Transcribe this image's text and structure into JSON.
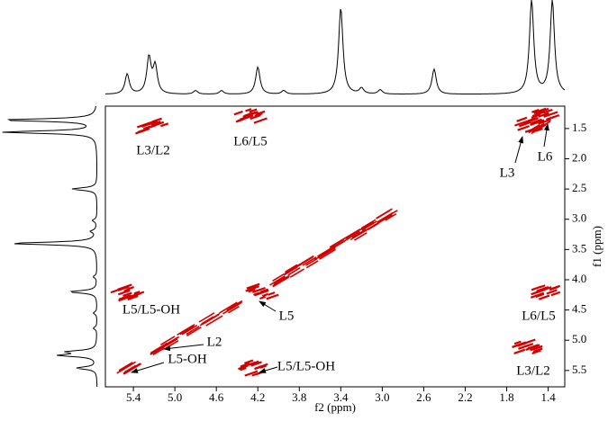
{
  "chart_data": {
    "type": "contour",
    "xlabel": "f2 (ppm)",
    "ylabel": "f1 (ppm)",
    "xlim": [
      5.67,
      1.24
    ],
    "ylim": [
      1.13,
      5.77
    ],
    "xticks": [
      5.4,
      {
        "value": 5.0,
        "label": "5.0"
      },
      4.6,
      4.2,
      3.8,
      3.4,
      {
        "value": 3.0,
        "label": "3.0"
      },
      2.6,
      2.2,
      1.8,
      1.4
    ],
    "yticks": [
      1.5,
      {
        "value": 2.0,
        "label": "2.0"
      },
      2.5,
      {
        "value": 3.0,
        "label": "3.0"
      },
      3.5,
      {
        "value": 4.0,
        "label": "4.0"
      },
      4.5,
      {
        "value": 5.0,
        "label": "5.0"
      },
      5.5
    ],
    "color": "#d40000",
    "peaks": {
      "f2": [
        5.21,
        4.28,
        1.56,
        1.43,
        5.47,
        1.42,
        1.6,
        4.23,
        4.17,
        5.15,
        5.05,
        5.45,
        3.4,
        2.95,
        3.1,
        3.25,
        3.55,
        3.7,
        3.85,
        4.0,
        4.45,
        4.65,
        4.85,
        1.5
      ],
      "f1": [
        1.45,
        1.28,
        1.45,
        1.3,
        4.21,
        4.21,
        5.1,
        5.45,
        4.21,
        5.15,
        5.05,
        5.45,
        3.4,
        2.95,
        3.1,
        3.25,
        3.55,
        3.7,
        3.85,
        4.0,
        4.45,
        4.65,
        4.85,
        1.5
      ]
    },
    "projection": {
      "ppm": [
        5.46,
        5.25,
        5.19,
        4.8,
        4.55,
        4.2,
        3.95,
        3.4,
        3.2,
        3.02,
        2.5,
        1.56,
        1.36
      ],
      "height": [
        0.28,
        0.5,
        0.38,
        0.05,
        0.05,
        0.38,
        0.05,
        1.2,
        0.08,
        0.06,
        0.35,
        1.3,
        1.3
      ]
    },
    "annotations": [
      "L3/L2",
      "L6/L5",
      "L3",
      "L6",
      "L5/L5-OH",
      "L5",
      "L6/L5",
      "L2",
      "L5-OH",
      "L5/L5-OH",
      "L3/L2"
    ]
  }
}
